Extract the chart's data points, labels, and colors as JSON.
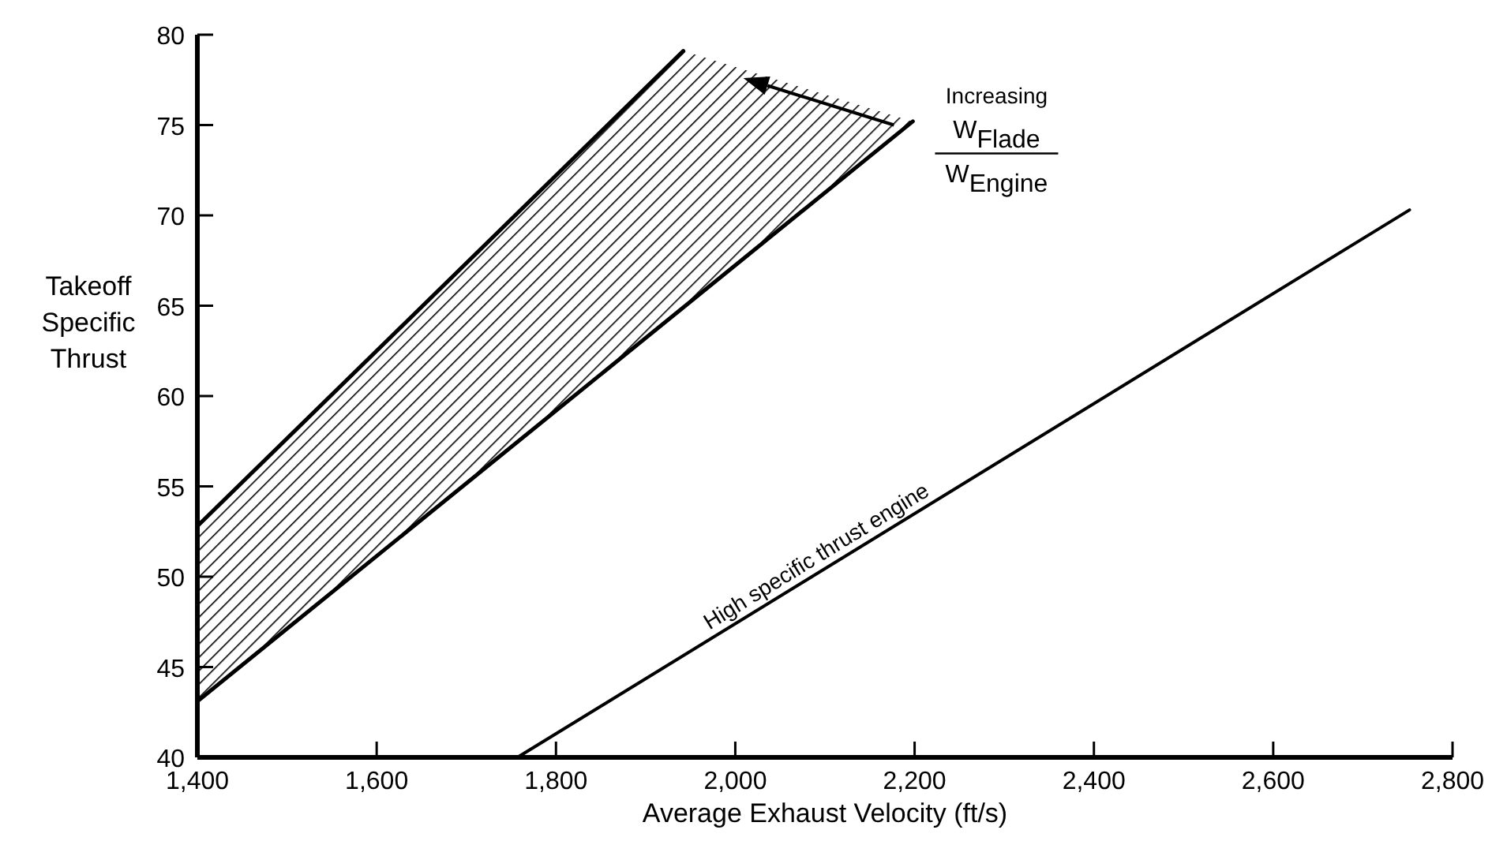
{
  "chart_data": {
    "type": "line",
    "xlabel": "Average Exhaust Velocity (ft/s)",
    "ylabel": "Takeoff Specific Thrust",
    "xlim": [
      1400,
      2800
    ],
    "ylim": [
      40,
      80
    ],
    "xticks": [
      {
        "value": 1400,
        "label": "1,400"
      },
      {
        "value": 1600,
        "label": "1,600"
      },
      {
        "value": 1800,
        "label": "1,800"
      },
      {
        "value": 2000,
        "label": "2,000"
      },
      {
        "value": 2200,
        "label": "2,200"
      },
      {
        "value": 2400,
        "label": "2,400"
      },
      {
        "value": 2600,
        "label": "2,600"
      },
      {
        "value": 2800,
        "label": "2,800"
      }
    ],
    "yticks": [
      40,
      45,
      50,
      55,
      60,
      65,
      70,
      75,
      80
    ],
    "series": [
      {
        "type": "line",
        "color": "#000000",
        "x": [
          1400,
          2198
        ],
        "values": [
          43.1,
          75.2
        ]
      },
      {
        "type": "line",
        "color": "#000000",
        "x": [
          1400,
          1942
        ],
        "values": [
          52.8,
          79.1
        ]
      },
      {
        "name": "High specific thrust engine",
        "color": "#000000",
        "x": [
          1757,
          2752
        ],
        "values": [
          40,
          70.3
        ]
      }
    ],
    "annotations": [
      "Increasing",
      "W$_{Flade}$",
      "W$_{Engine}$"
    ],
    "grid": false,
    "legend": false,
    "marker": "none",
    "line_style": "solid"
  }
}
